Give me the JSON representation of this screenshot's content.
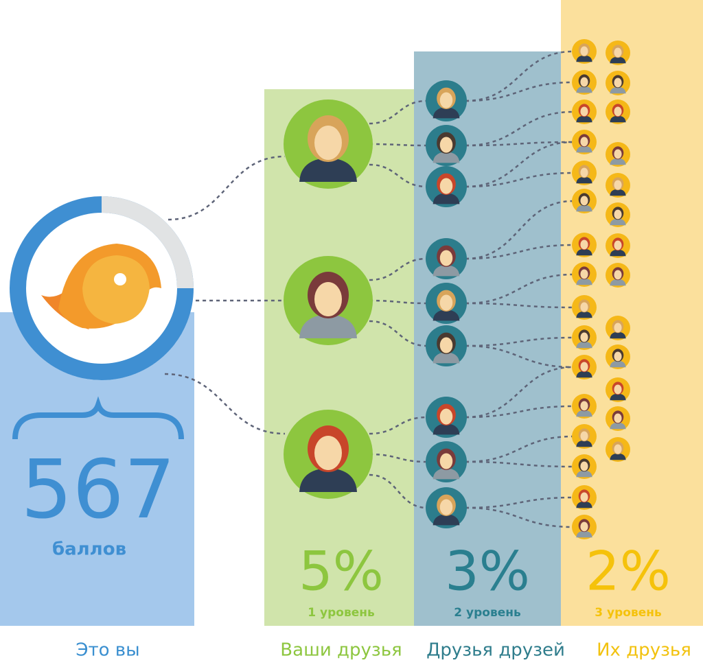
{
  "you": {
    "score": "567",
    "score_unit": "баллов",
    "label": "Это вы"
  },
  "levels": [
    {
      "percent": "5%",
      "level": "1 уровень",
      "label": "Ваши друзья"
    },
    {
      "percent": "3%",
      "level": "2 уровень",
      "label": "Друзья друзей"
    },
    {
      "percent": "2%",
      "level": "3 уровень",
      "label": "Их друзья"
    }
  ]
}
